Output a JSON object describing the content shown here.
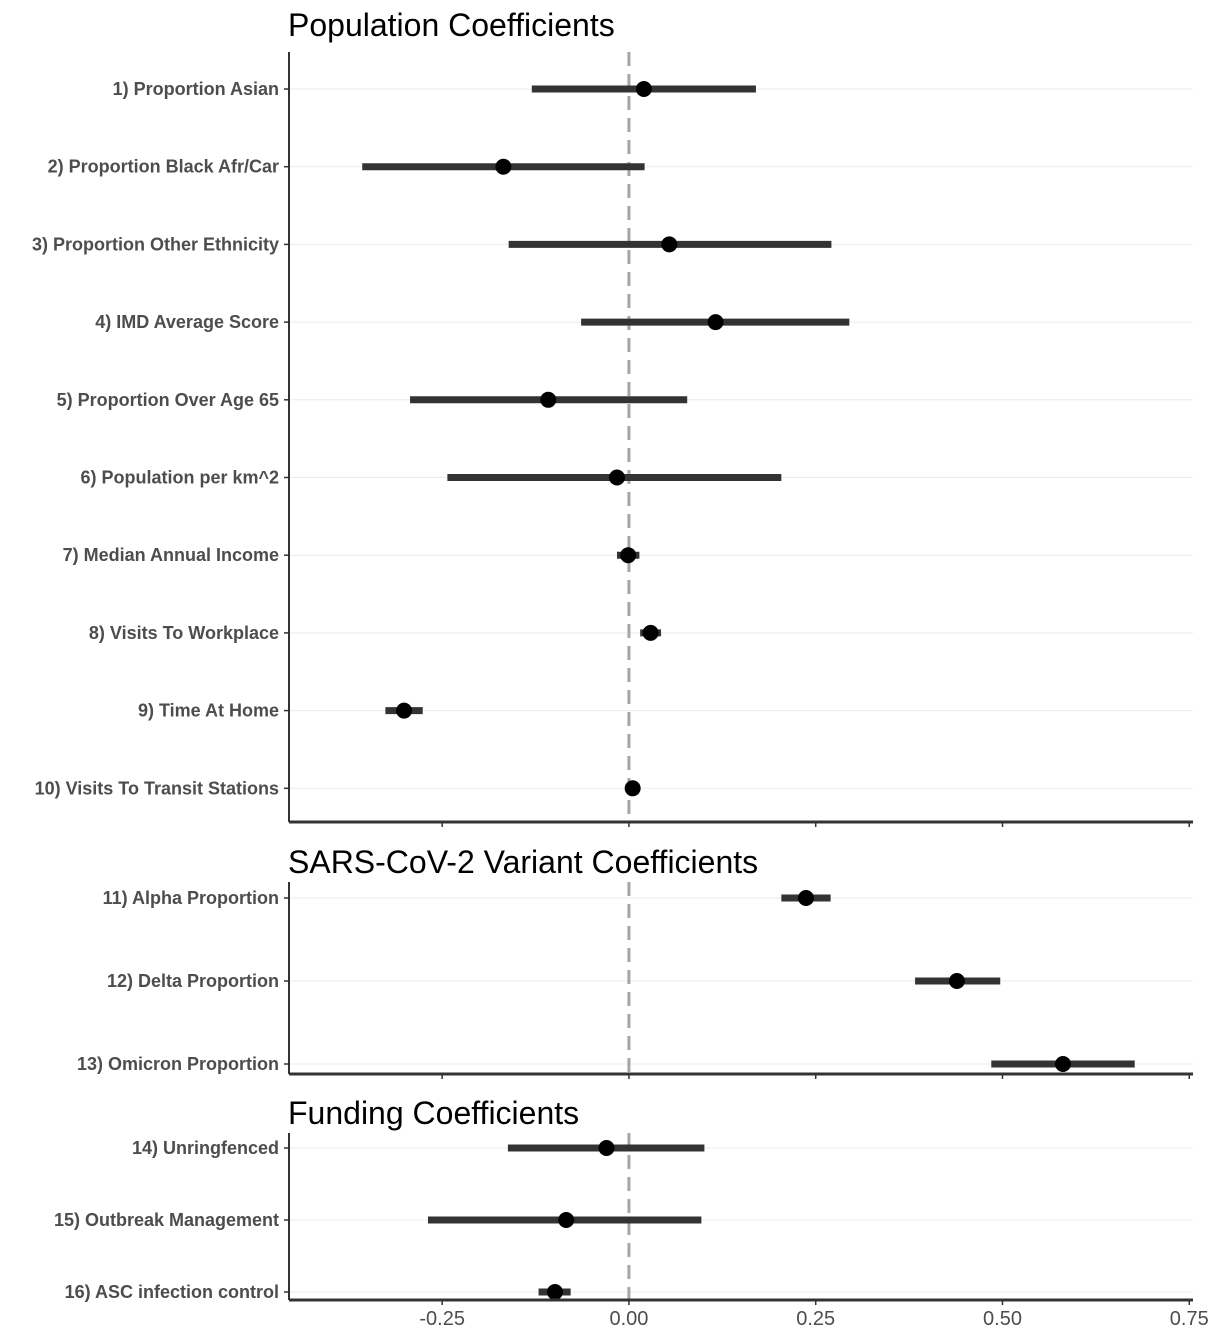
{
  "chart_data": {
    "type": "scatter",
    "subtype": "coefficient-forest-plot",
    "xlim": [
      -0.455,
      0.755
    ],
    "x_ticks": [
      -0.25,
      0.0,
      0.25,
      0.5,
      0.75
    ],
    "x_tick_labels": [
      "-0.25",
      "0.00",
      "0.25",
      "0.50",
      "0.75"
    ],
    "reference_line": 0,
    "grid": "horizontal-major-only",
    "colors": {
      "point": "#000000",
      "interval": "#333333",
      "reference": "#a6a6a6",
      "grid": "#ebebeb",
      "axis": "#333333"
    },
    "panels": [
      {
        "title": "Population Coefficients",
        "rows": [
          {
            "label": "1) Proportion Asian",
            "estimate": 0.02,
            "low": -0.13,
            "high": 0.17
          },
          {
            "label": "2) Proportion Black Afr/Car",
            "estimate": -0.168,
            "low": -0.357,
            "high": 0.021
          },
          {
            "label": "3) Proportion Other Ethnicity",
            "estimate": 0.054,
            "low": -0.161,
            "high": 0.271
          },
          {
            "label": "4) IMD Average Score",
            "estimate": 0.116,
            "low": -0.064,
            "high": 0.295
          },
          {
            "label": "5) Proportion Over Age 65",
            "estimate": -0.108,
            "low": -0.293,
            "high": 0.078
          },
          {
            "label": "6) Population per km^2",
            "estimate": -0.016,
            "low": -0.243,
            "high": 0.204
          },
          {
            "label": "7) Median Annual Income",
            "estimate": -0.001,
            "low": -0.016,
            "high": 0.014
          },
          {
            "label": "8) Visits To Workplace",
            "estimate": 0.029,
            "low": 0.015,
            "high": 0.043
          },
          {
            "label": "9) Time At Home",
            "estimate": -0.301,
            "low": -0.326,
            "high": -0.276
          },
          {
            "label": "10) Visits To Transit Stations",
            "estimate": 0.005,
            "low": 0.0,
            "high": 0.01
          }
        ]
      },
      {
        "title": "SARS-CoV-2 Variant Coefficients",
        "rows": [
          {
            "label": "11) Alpha Proportion",
            "estimate": 0.237,
            "low": 0.204,
            "high": 0.27
          },
          {
            "label": "12) Delta Proportion",
            "estimate": 0.439,
            "low": 0.383,
            "high": 0.497
          },
          {
            "label": "13) Omicron Proportion",
            "estimate": 0.581,
            "low": 0.485,
            "high": 0.677
          }
        ]
      },
      {
        "title": "Funding Coefficients",
        "rows": [
          {
            "label": "14) Unringfenced",
            "estimate": -0.03,
            "low": -0.162,
            "high": 0.101
          },
          {
            "label": "15) Outbreak Management",
            "estimate": -0.084,
            "low": -0.269,
            "high": 0.097
          },
          {
            "label": "16) ASC infection control",
            "estimate": -0.099,
            "low": -0.121,
            "high": -0.078
          }
        ]
      }
    ]
  }
}
